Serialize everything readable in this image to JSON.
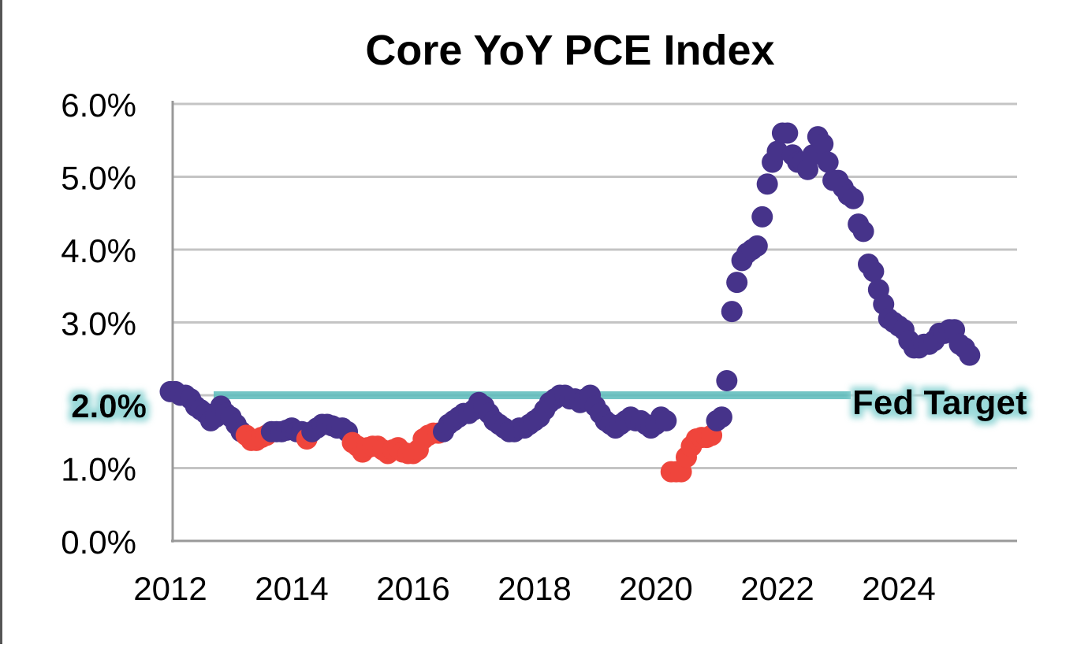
{
  "chart_data": {
    "type": "scatter",
    "title": "Core YoY PCE Index",
    "xlabel": "",
    "ylabel": "",
    "xlim": [
      2012,
      2026
    ],
    "ylim": [
      0,
      6
    ],
    "x_ticks": [
      "2012",
      "2014",
      "2016",
      "2018",
      "2020",
      "2022",
      "2024"
    ],
    "y_ticks": [
      "0.0%",
      "1.0%",
      "2.0%",
      "3.0%",
      "4.0%",
      "5.0%",
      "6.0%"
    ],
    "grid": "horizontal",
    "reference_line": {
      "label": "Fed Target",
      "value": 2.0,
      "value_label": "2.0%",
      "color": "#5bbcbc"
    },
    "colors": {
      "above": "#46338a",
      "low": "#ef453c"
    },
    "monthly_start": "2012-01",
    "values": [
      2.05,
      2.05,
      2.0,
      2.0,
      1.95,
      1.85,
      1.8,
      1.75,
      1.65,
      1.7,
      1.85,
      1.75,
      1.7,
      1.6,
      1.5,
      1.45,
      1.38,
      1.38,
      1.42,
      1.45,
      1.5,
      1.5,
      1.5,
      1.52,
      1.55,
      1.5,
      1.5,
      1.4,
      1.5,
      1.55,
      1.6,
      1.6,
      1.58,
      1.55,
      1.55,
      1.5,
      1.35,
      1.3,
      1.22,
      1.28,
      1.3,
      1.3,
      1.25,
      1.2,
      1.25,
      1.28,
      1.22,
      1.2,
      1.2,
      1.25,
      1.4,
      1.45,
      1.48,
      1.48,
      1.5,
      1.6,
      1.65,
      1.7,
      1.75,
      1.75,
      1.8,
      1.9,
      1.85,
      1.75,
      1.65,
      1.6,
      1.55,
      1.5,
      1.5,
      1.55,
      1.55,
      1.6,
      1.65,
      1.7,
      1.8,
      1.9,
      1.95,
      2.0,
      2.0,
      1.95,
      1.95,
      1.9,
      1.95,
      2.0,
      1.85,
      1.75,
      1.65,
      1.6,
      1.55,
      1.6,
      1.65,
      1.7,
      1.65,
      1.65,
      1.6,
      1.55,
      1.6,
      1.7,
      1.65,
      0.95,
      0.95,
      0.95,
      1.15,
      1.3,
      1.4,
      1.42,
      1.42,
      1.45,
      1.65,
      1.7,
      2.2,
      3.15,
      3.55,
      3.85,
      3.95,
      4.0,
      4.05,
      4.45,
      4.9,
      5.2,
      5.35,
      5.6,
      5.6,
      5.3,
      5.2,
      5.2,
      5.1,
      5.3,
      5.55,
      5.45,
      5.2,
      4.95,
      4.95,
      4.85,
      4.75,
      4.7,
      4.35,
      4.25,
      3.8,
      3.7,
      3.45,
      3.25,
      3.05,
      3.0,
      2.95,
      2.9,
      2.75,
      2.65,
      2.65,
      2.7,
      2.7,
      2.75,
      2.85,
      2.85,
      2.9,
      2.9,
      2.7,
      2.65,
      2.55
    ],
    "low_flags": [
      0,
      0,
      0,
      0,
      0,
      0,
      0,
      0,
      0,
      0,
      0,
      0,
      0,
      0,
      0,
      1,
      1,
      1,
      1,
      1,
      0,
      0,
      0,
      0,
      0,
      0,
      0,
      1,
      0,
      0,
      0,
      0,
      0,
      0,
      0,
      0,
      1,
      1,
      1,
      1,
      1,
      1,
      1,
      1,
      1,
      1,
      1,
      1,
      1,
      1,
      1,
      1,
      1,
      1,
      0,
      0,
      0,
      0,
      0,
      0,
      0,
      0,
      0,
      0,
      0,
      0,
      0,
      0,
      0,
      0,
      0,
      0,
      0,
      0,
      0,
      0,
      0,
      0,
      0,
      0,
      0,
      0,
      0,
      0,
      0,
      0,
      0,
      0,
      0,
      0,
      0,
      0,
      0,
      0,
      0,
      0,
      0,
      0,
      0,
      1,
      1,
      1,
      1,
      1,
      1,
      1,
      1,
      1,
      0,
      0,
      0,
      0,
      0,
      0,
      0,
      0,
      0,
      0,
      0,
      0,
      0,
      0,
      0,
      0,
      0,
      0,
      0,
      0,
      0,
      0,
      0,
      0,
      0,
      0,
      0,
      0,
      0,
      0,
      0,
      0,
      0,
      0,
      0,
      0,
      0,
      0,
      0,
      0,
      0,
      0,
      0,
      0,
      0,
      0,
      0,
      0,
      0,
      0,
      0
    ]
  }
}
